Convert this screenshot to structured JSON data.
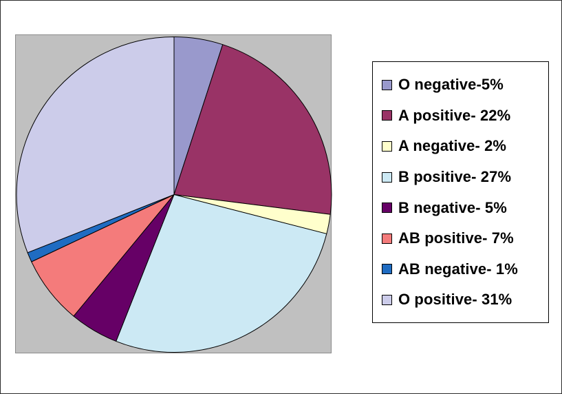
{
  "chart_data": {
    "type": "pie",
    "start_angle_deg": 0,
    "direction": "clockwise",
    "legend_position": "right",
    "slices": [
      {
        "label": "O negative-5%",
        "value": 5,
        "color": "#9999cc"
      },
      {
        "label": "A positive- 22%",
        "value": 22,
        "color": "#993366"
      },
      {
        "label": "A negative- 2%",
        "value": 2,
        "color": "#ffffcc"
      },
      {
        "label": "B positive- 27%",
        "value": 27,
        "color": "#cce9f4"
      },
      {
        "label": "B negative- 5%",
        "value": 5,
        "color": "#660066"
      },
      {
        "label": "AB positive- 7%",
        "value": 7,
        "color": "#f47b7b"
      },
      {
        "label": "AB negative- 1%",
        "value": 1,
        "color": "#1f6cc2"
      },
      {
        "label": "O positive- 31%",
        "value": 31,
        "color": "#ccccea"
      }
    ]
  }
}
